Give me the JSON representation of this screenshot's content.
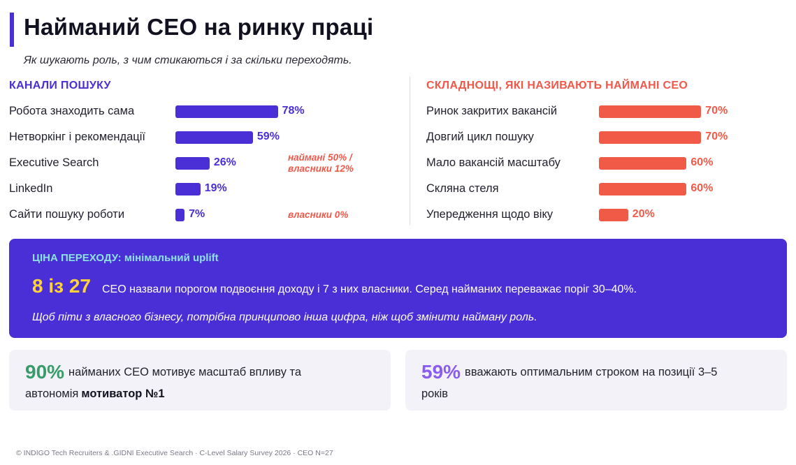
{
  "header": {
    "title": "Найманий CEO на ринку праці",
    "subtitle": "Як шукають роль, з чим стикаються і за скільки переходять."
  },
  "chart_data": [
    {
      "type": "bar",
      "orientation": "horizontal",
      "title": "КАНАЛИ ПОШУКУ",
      "color": "#4a2fd6",
      "unit": "%",
      "xlim": [
        0,
        100
      ],
      "categories": [
        "Робота знаходить сама",
        "Нетворкінг і рекомендації",
        "Executive Search",
        "LinkedIn",
        "Сайти пошуку роботи"
      ],
      "values": [
        78,
        59,
        26,
        19,
        7
      ],
      "labels": [
        "78%",
        "59%",
        "26%",
        "19%",
        "7%"
      ],
      "annotations": [
        {
          "category": "Executive Search",
          "lines": [
            "наймані 50% /",
            "власники 12%"
          ]
        },
        {
          "category": "Сайти пошуку роботи",
          "lines": [
            "власники 0%"
          ]
        }
      ]
    },
    {
      "type": "bar",
      "orientation": "horizontal",
      "title": "СКЛАДНОЩІ, ЯКІ НАЗИВАЮТЬ НАЙМАНІ CEO",
      "color": "#f25a48",
      "unit": "%",
      "xlim": [
        0,
        100
      ],
      "categories": [
        "Ринок закритих вакансій",
        "Довгий цикл пошуку",
        "Мало вакансій масштабу",
        "Скляна стеля",
        "Упередження щодо віку"
      ],
      "values": [
        70,
        70,
        60,
        60,
        20
      ],
      "labels": [
        "70%",
        "70%",
        "60%",
        "60%",
        "20%"
      ]
    }
  ],
  "price": {
    "title": "ЦІНА ПЕРЕХОДУ: мінімальний uplift",
    "big": "8 із 27",
    "text": "CEO назвали порогом подвоєння доходу і 7 з них власники. Серед найманих переважає поріг 30–40%.",
    "note": "Щоб піти з власного бізнесу, потрібна принципово інша цифра, ніж щоб змінити найману роль."
  },
  "stats": {
    "left": {
      "value": "90%",
      "line1": "найманих CEO мотивує масштаб впливу та",
      "line2": "автономія",
      "strong": "мотиватор №1"
    },
    "right": {
      "value": "59%",
      "line1": "вважають оптимальним строком на позиції 3–5",
      "line2": "років"
    }
  },
  "footer": "© INDIGO Tech Recruiters & .GIDNI Executive Search · C-Level Salary Survey 2026 · CEO N=27"
}
